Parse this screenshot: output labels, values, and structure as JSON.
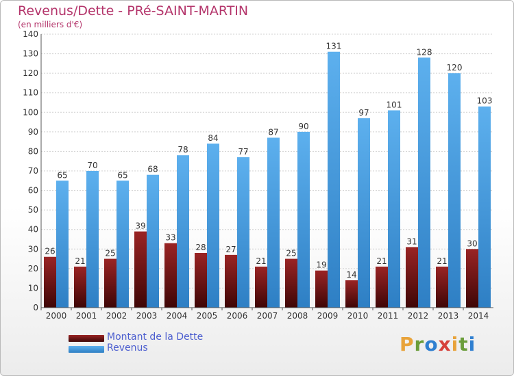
{
  "title": "Revenus/Dette - PRé-SAINT-MARTIN",
  "subtitle": "(en milliers d'€)",
  "logo": {
    "letters": [
      "P",
      "r",
      "o",
      "x",
      "i",
      "t",
      "i"
    ],
    "colors": [
      "#e8a33a",
      "#6a9d3a",
      "#2f7fd0",
      "#d6403b",
      "#e8a33a",
      "#6a9d3a",
      "#2f7fd0"
    ]
  },
  "colors": {
    "dette": "#7a1515",
    "revenus": "#4aa3e6",
    "title": "#b4356b",
    "legend_text": "#4c5ecf"
  },
  "chart_data": {
    "type": "bar",
    "categories": [
      "2000",
      "2001",
      "2002",
      "2003",
      "2004",
      "2005",
      "2006",
      "2007",
      "2008",
      "2009",
      "2010",
      "2011",
      "2012",
      "2013",
      "2014"
    ],
    "series": [
      {
        "name": "Montant de la Dette",
        "values": [
          26,
          21,
          25,
          39,
          33,
          28,
          27,
          21,
          25,
          19,
          14,
          21,
          31,
          21,
          30
        ]
      },
      {
        "name": "Revenus",
        "values": [
          65,
          70,
          65,
          68,
          78,
          84,
          77,
          87,
          90,
          131,
          97,
          101,
          128,
          120,
          103
        ]
      }
    ],
    "ylim": [
      0,
      140
    ],
    "yticks": [
      0,
      10,
      20,
      30,
      40,
      50,
      60,
      70,
      80,
      90,
      100,
      110,
      120,
      130,
      140
    ],
    "grid": true,
    "legend_position": "bottom-left"
  }
}
